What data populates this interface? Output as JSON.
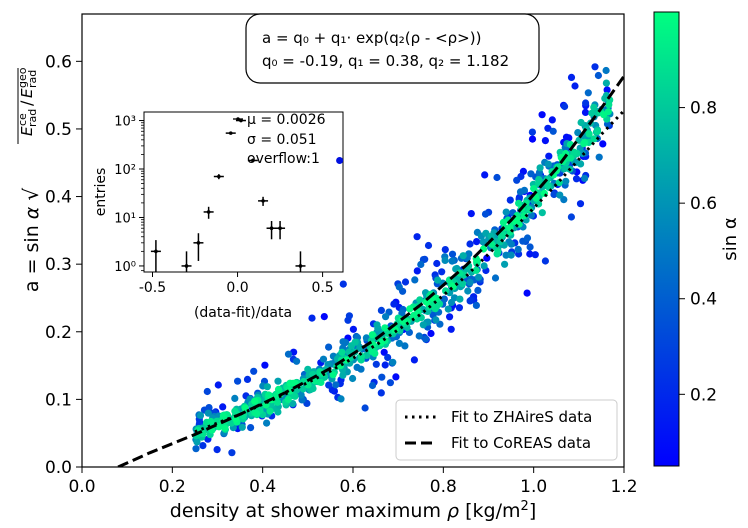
{
  "chart_data": {
    "type": "scatter",
    "xlabel": "density at shower maximum ρ [kg/m²]",
    "ylabel": "a = sin α √(E_rad^ce / E_rad^geo)",
    "xlim": [
      0.0,
      1.2
    ],
    "ylim": [
      0.0,
      0.67
    ],
    "xticks": [
      "0.0",
      "0.2",
      "0.4",
      "0.6",
      "0.8",
      "1.0",
      "1.2"
    ],
    "yticks": [
      "0.0",
      "0.1",
      "0.2",
      "0.3",
      "0.4",
      "0.5",
      "0.6"
    ],
    "formula_box": {
      "line1": "a = q₀ + q₁· exp(q₂(ρ - <ρ>))",
      "line2": "q₀ = -0.19, q₁ = 0.38, q₂ = 1.182"
    },
    "fits": [
      {
        "name": "Fit to ZHAireS data",
        "style": "dotted",
        "x": [
          0.25,
          0.35,
          0.45,
          0.55,
          0.65,
          0.75,
          0.85,
          0.95,
          1.05,
          1.15,
          1.2
        ],
        "y": [
          0.052,
          0.078,
          0.108,
          0.142,
          0.18,
          0.226,
          0.282,
          0.348,
          0.418,
          0.492,
          0.527
        ]
      },
      {
        "name": "Fit to CoREAS data",
        "style": "dashed",
        "x": [
          0.08,
          0.15,
          0.25,
          0.35,
          0.45,
          0.55,
          0.65,
          0.75,
          0.85,
          0.95,
          1.05,
          1.15,
          1.2
        ],
        "y": [
          0.0,
          0.021,
          0.048,
          0.078,
          0.11,
          0.146,
          0.189,
          0.24,
          0.298,
          0.365,
          0.441,
          0.531,
          0.578
        ]
      }
    ],
    "scatter_trend": {
      "x": [
        0.25,
        0.35,
        0.45,
        0.55,
        0.65,
        0.75,
        0.85,
        0.95,
        1.05,
        1.15
      ],
      "y": [
        0.05,
        0.077,
        0.108,
        0.143,
        0.183,
        0.232,
        0.288,
        0.355,
        0.432,
        0.52
      ]
    },
    "scatter_x_range": [
      0.25,
      1.17
    ],
    "colorbar": {
      "label": "sin α",
      "range": [
        0.05,
        1.0
      ],
      "ticks": [
        "0.2",
        "0.4",
        "0.6",
        "0.8"
      ],
      "colors": [
        "#0000ff",
        "#00ff80"
      ]
    },
    "legend": {
      "placement": "lower-right",
      "entries": [
        {
          "label": "Fit to ZHAireS data",
          "style": "dotted"
        },
        {
          "label": "Fit to CoREAS data",
          "style": "dashed"
        }
      ]
    },
    "inset": {
      "type": "histogram-errorbar",
      "xlabel": "(data-fit)/data",
      "ylabel": "entries",
      "xlim": [
        -0.55,
        0.62
      ],
      "ylim_log": [
        0.75,
        1500
      ],
      "xticks": [
        "-0.5",
        "0.0",
        "0.5"
      ],
      "yticks": [
        "10⁰",
        "10¹",
        "10²",
        "10³"
      ],
      "points": [
        {
          "x": -0.48,
          "y": 2
        },
        {
          "x": -0.3,
          "y": 1
        },
        {
          "x": -0.23,
          "y": 3
        },
        {
          "x": -0.17,
          "y": 13
        },
        {
          "x": -0.11,
          "y": 70
        },
        {
          "x": -0.04,
          "y": 550
        },
        {
          "x": 0.02,
          "y": 1000
        },
        {
          "x": 0.09,
          "y": 150
        },
        {
          "x": 0.15,
          "y": 22
        },
        {
          "x": 0.2,
          "y": 6
        },
        {
          "x": 0.25,
          "y": 6
        },
        {
          "x": 0.37,
          "y": 1
        }
      ],
      "overflow_point": {
        "x": 0.6,
        "y": 150
      },
      "stats": {
        "mu": "μ = 0.0026",
        "sigma": "σ = 0.051",
        "overflow": "overflow:1"
      }
    }
  }
}
